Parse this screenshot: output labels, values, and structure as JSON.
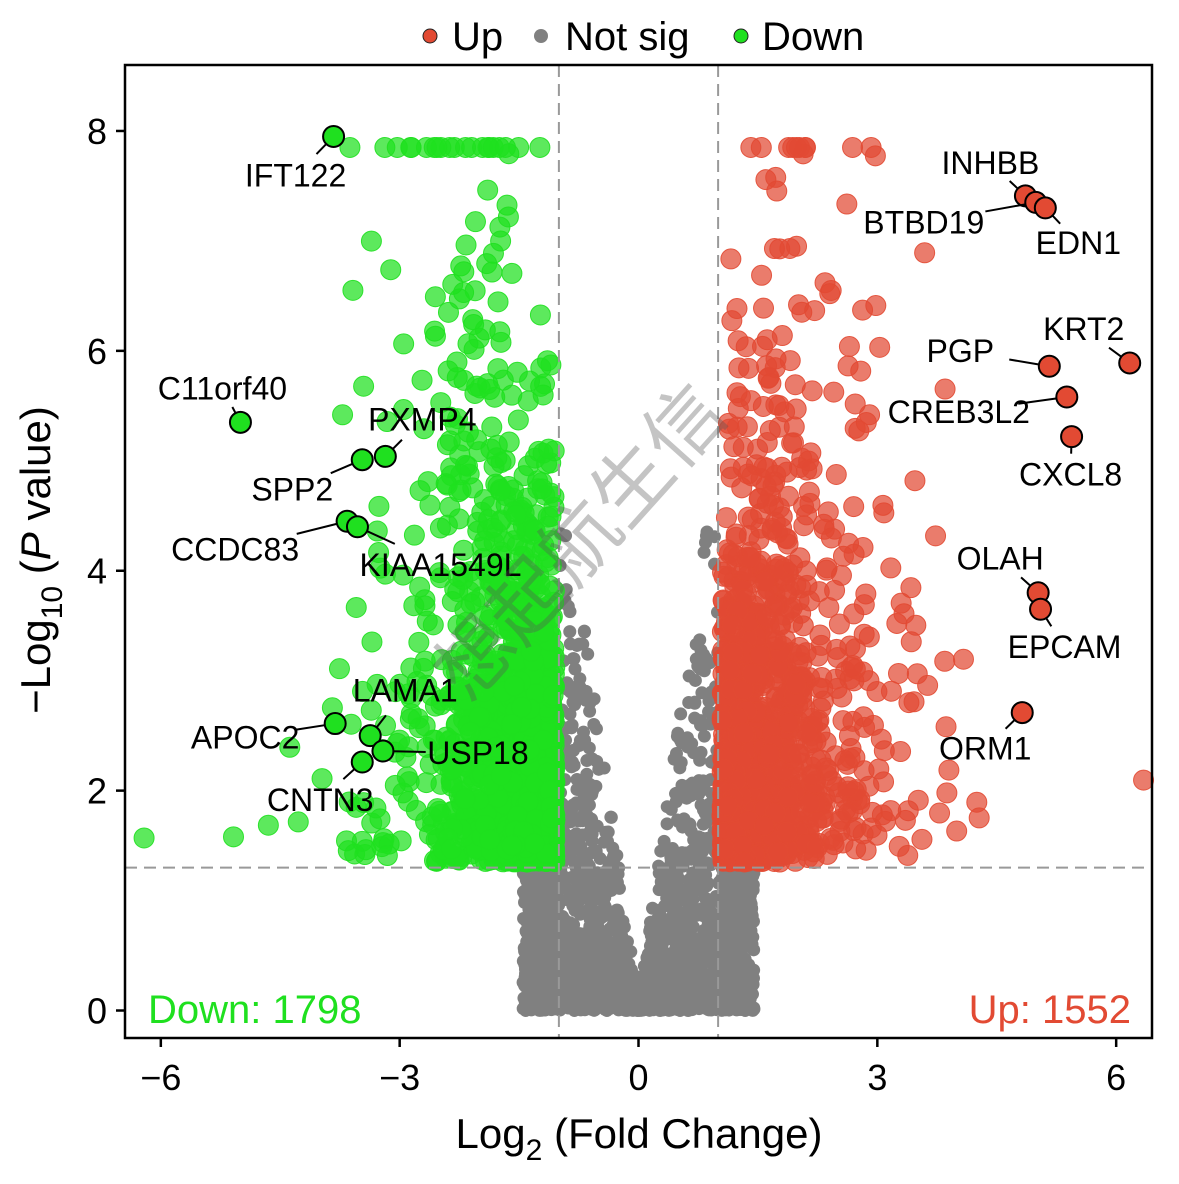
{
  "chart_data": {
    "type": "scatter",
    "subtype": "volcano",
    "xlabel": {
      "prefix": "Log",
      "sub": "2",
      "suffix": " (Fold Change)"
    },
    "ylabel": {
      "prefix": "−Log",
      "sub": "10",
      "mid": " (",
      "italic": "P",
      "suffix": " value)"
    },
    "xlim": [
      -6.45,
      6.45
    ],
    "ylim": [
      -0.25,
      8.6
    ],
    "xticks": [
      -6,
      -3,
      0,
      3,
      6
    ],
    "xtick_labels": [
      "−6",
      "−3",
      "0",
      "3",
      "6"
    ],
    "yticks": [
      0,
      2,
      4,
      6,
      8
    ],
    "ytick_labels": [
      "0",
      "2",
      "4",
      "6",
      "8"
    ],
    "thresholds": {
      "log2fc": [
        -1,
        1
      ],
      "neg_log10_p": 1.3
    },
    "grid": false,
    "legend": {
      "position": "top",
      "items": [
        {
          "label": "Up",
          "color": "#E24A33"
        },
        {
          "label": "Not sig",
          "color": "#808080"
        },
        {
          "label": "Down",
          "color": "#1FE01F"
        }
      ]
    },
    "counts": {
      "down_label": "Down: 1798",
      "down": 1798,
      "up_label": "Up: 1552",
      "up": 1552
    },
    "colors": {
      "up": "#E24A33",
      "down": "#1FE01F",
      "notsig": "#808080",
      "threshold_line": "#999999"
    },
    "labeled_genes": [
      {
        "gene": "IFT122",
        "x": -3.83,
        "y": 7.95,
        "group": "down"
      },
      {
        "gene": "C11orf40",
        "x": -5.0,
        "y": 5.35,
        "group": "down"
      },
      {
        "gene": "PXMP4",
        "x": -3.18,
        "y": 5.04,
        "group": "down"
      },
      {
        "gene": "SPP2",
        "x": -3.47,
        "y": 5.01,
        "group": "down"
      },
      {
        "gene": "CCDC83",
        "x": -3.66,
        "y": 4.45,
        "group": "down"
      },
      {
        "gene": "KIAA1549L",
        "x": -3.53,
        "y": 4.4,
        "group": "down"
      },
      {
        "gene": "LAMA1",
        "x": -3.37,
        "y": 2.5,
        "group": "down"
      },
      {
        "gene": "APOC2",
        "x": -3.81,
        "y": 2.61,
        "group": "down"
      },
      {
        "gene": "USP18",
        "x": -3.21,
        "y": 2.36,
        "group": "down"
      },
      {
        "gene": "CNTN3",
        "x": -3.47,
        "y": 2.26,
        "group": "down"
      },
      {
        "gene": "INHBB",
        "x": 4.86,
        "y": 7.41,
        "group": "up"
      },
      {
        "gene": "BTBD19",
        "x": 4.99,
        "y": 7.35,
        "group": "up"
      },
      {
        "gene": "EDN1",
        "x": 5.11,
        "y": 7.3,
        "group": "up"
      },
      {
        "gene": "KRT2",
        "x": 6.17,
        "y": 5.89,
        "group": "up"
      },
      {
        "gene": "PGP",
        "x": 5.16,
        "y": 5.86,
        "group": "up"
      },
      {
        "gene": "CREB3L2",
        "x": 5.38,
        "y": 5.58,
        "group": "up"
      },
      {
        "gene": "CXCL8",
        "x": 5.44,
        "y": 5.22,
        "group": "up"
      },
      {
        "gene": "OLAH",
        "x": 5.02,
        "y": 3.8,
        "group": "up"
      },
      {
        "gene": "EPCAM",
        "x": 5.05,
        "y": 3.65,
        "group": "up"
      },
      {
        "gene": "ORM1",
        "x": 4.82,
        "y": 2.71,
        "group": "up"
      }
    ]
  },
  "watermark": "想起航生信"
}
